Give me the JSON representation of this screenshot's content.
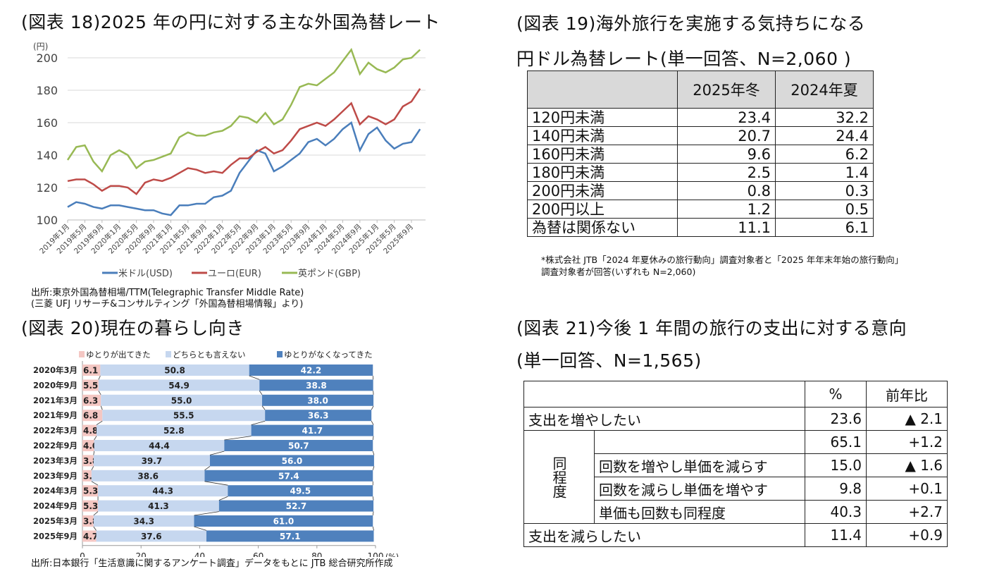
{
  "fig18": {
    "title": "(図表 18)2025 年の円に対する主な外国為替レート",
    "source_line1": "出所:東京外国為替相場/TTM(Telegraphic Transfer Middle Rate)",
    "source_line2": "(三菱 UFJ リサーチ&コンサルティング「外国為替相場情報」より)"
  },
  "fig19": {
    "title_line1": "(図表 19)海外旅行を実施する気持ちになる",
    "title_line2": "円ドル為替レート(単一回答、N=2,060 )",
    "columns": [
      "",
      "2025年冬",
      "2024年夏"
    ],
    "rows": [
      [
        "120円未満",
        "23.4",
        "32.2"
      ],
      [
        "140円未満",
        "20.7",
        "24.4"
      ],
      [
        "160円未満",
        "9.6",
        "6.2"
      ],
      [
        "180円未満",
        "2.5",
        "1.4"
      ],
      [
        "200円未満",
        "0.8",
        "0.3"
      ],
      [
        "200円以上",
        "1.2",
        "0.5"
      ],
      [
        "為替は関係ない",
        "11.1",
        "6.1"
      ]
    ],
    "note_line1": "*株式会社 JTB「2024 年夏休みの旅行動向」調査対象者と「2025 年年末年始の旅行動向」",
    "note_line2": "調査対象者が回答(いずれも N=2,060)"
  },
  "fig20": {
    "title": "(図表 20)現在の暮らし向き",
    "source": "出所:日本銀行「生活意識に関するアンケート調査」データをもとに JTB 総合研究所作成"
  },
  "fig21": {
    "title_line1": "(図表 21)今後 1 年間の旅行の支出に対する意向",
    "title_line2": "(単一回答、N=1,565)",
    "col_pct": "%",
    "col_yoy": "前年比",
    "increase": {
      "label": "支出を増やしたい",
      "pct": "23.6",
      "yoy": "▲ 2.1"
    },
    "same_group": "同程度",
    "same_total": {
      "pct": "65.1",
      "yoy": "+1.2"
    },
    "same_rows": [
      {
        "label": "回数を増やし単価を減らす",
        "pct": "15.0",
        "yoy": "▲ 1.6"
      },
      {
        "label": "回数を減らし単価を増やす",
        "pct": "9.8",
        "yoy": "+0.1"
      },
      {
        "label": "単価も回数も同程度",
        "pct": "40.3",
        "yoy": "+2.7"
      }
    ],
    "decrease": {
      "label": "支出を減らしたい",
      "pct": "11.4",
      "yoy": "+0.9"
    }
  },
  "chart_data": [
    {
      "type": "line",
      "ylabel": "(円)",
      "ylim": [
        100,
        205
      ],
      "yticks": [
        100,
        120,
        140,
        160,
        180,
        200
      ],
      "grid": true,
      "legend": "bottom",
      "xticks": [
        "2019年1月",
        "2019年5月",
        "2019年9月",
        "2020年1月",
        "2020年5月",
        "2020年9月",
        "2021年1月",
        "2021年5月",
        "2021年9月",
        "2022年1月",
        "2022年5月",
        "2022年9月",
        "2023年1月",
        "2023年5月",
        "2023年9月",
        "2024年1月",
        "2024年5月",
        "2024年9月",
        "2025年1月",
        "2025年5月",
        "2025年9月"
      ],
      "x": [
        "2019-01",
        "2019-03",
        "2019-05",
        "2019-07",
        "2019-09",
        "2019-11",
        "2020-01",
        "2020-03",
        "2020-05",
        "2020-07",
        "2020-09",
        "2020-11",
        "2021-01",
        "2021-03",
        "2021-05",
        "2021-07",
        "2021-09",
        "2021-11",
        "2022-01",
        "2022-03",
        "2022-05",
        "2022-07",
        "2022-09",
        "2022-11",
        "2023-01",
        "2023-03",
        "2023-05",
        "2023-07",
        "2023-09",
        "2023-11",
        "2024-01",
        "2024-03",
        "2024-05",
        "2024-07",
        "2024-09",
        "2024-11",
        "2025-01",
        "2025-03",
        "2025-05",
        "2025-07",
        "2025-09",
        "2025-11"
      ],
      "series": [
        {
          "name": "米ドル(USD)",
          "color": "#4a7ebb",
          "values": [
            108,
            111,
            110,
            108,
            107,
            109,
            109,
            108,
            107,
            106,
            106,
            104,
            103,
            109,
            109,
            110,
            110,
            114,
            115,
            118,
            129,
            136,
            143,
            141,
            130,
            133,
            137,
            141,
            148,
            150,
            146,
            150,
            156,
            160,
            143,
            153,
            157,
            149,
            144,
            147,
            148,
            156
          ]
        },
        {
          "name": "ユーロ(EUR)",
          "color": "#be4b48",
          "values": [
            124,
            125,
            125,
            122,
            118,
            121,
            121,
            120,
            116,
            123,
            125,
            124,
            126,
            129,
            132,
            131,
            129,
            130,
            129,
            134,
            138,
            138,
            142,
            145,
            141,
            143,
            149,
            156,
            158,
            160,
            158,
            162,
            167,
            172,
            159,
            164,
            162,
            159,
            162,
            170,
            173,
            181
          ]
        },
        {
          "name": "英ポンド(GBP)",
          "color": "#98b954",
          "values": [
            137,
            145,
            146,
            136,
            130,
            140,
            143,
            140,
            132,
            136,
            137,
            139,
            141,
            151,
            154,
            152,
            152,
            154,
            155,
            158,
            164,
            163,
            160,
            166,
            159,
            162,
            171,
            182,
            184,
            183,
            187,
            191,
            198,
            205,
            190,
            197,
            193,
            191,
            194,
            199,
            200,
            205
          ]
        }
      ]
    },
    {
      "type": "bar",
      "stacked": true,
      "orientation": "horizontal",
      "xlim": [
        0,
        100
      ],
      "xticks": [
        0,
        20,
        40,
        60,
        80,
        100
      ],
      "xunit": "(%)",
      "legend": "top",
      "categories": [
        "2020年3月",
        "2020年9月",
        "2021年3月",
        "2021年9月",
        "2022年3月",
        "2022年9月",
        "2023年3月",
        "2023年9月",
        "2024年3月",
        "2024年9月",
        "2025年3月",
        "2025年9月"
      ],
      "series": [
        {
          "name": "ゆとりが出てきた",
          "color": "#f4c7c3",
          "values": [
            6.1,
            5.5,
            6.3,
            6.8,
            4.8,
            4.0,
            3.8,
            3.1,
            5.3,
            5.3,
            3.8,
            4.7
          ]
        },
        {
          "name": "どちらとも言えない",
          "color": "#c6d7ef",
          "values": [
            50.8,
            54.9,
            55.0,
            55.5,
            52.8,
            44.4,
            39.7,
            38.6,
            44.3,
            41.3,
            34.3,
            37.6
          ]
        },
        {
          "name": "ゆとりがなくなってきた",
          "color": "#4f81bd",
          "values": [
            42.2,
            38.8,
            38.0,
            36.3,
            41.7,
            50.7,
            56.0,
            57.4,
            49.5,
            52.7,
            61.0,
            57.1
          ]
        }
      ]
    }
  ]
}
